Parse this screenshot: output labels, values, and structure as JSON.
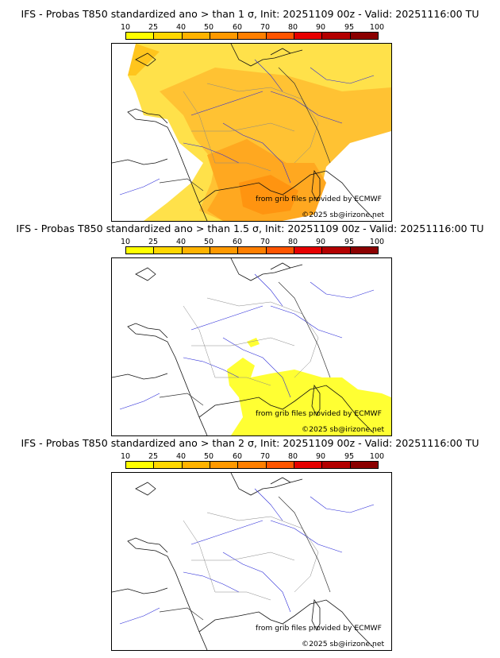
{
  "colorbar": {
    "ticks": [
      "10",
      "25",
      "40",
      "50",
      "60",
      "70",
      "80",
      "90",
      "95",
      "100"
    ],
    "colors": [
      "#ffff00",
      "#ffd700",
      "#ffb300",
      "#ff9900",
      "#ff7f00",
      "#ff5500",
      "#e60000",
      "#b30000",
      "#8b0000",
      "#5a0000"
    ]
  },
  "panels": [
    {
      "title": "IFS - Probas T850  standardized ano > than 1 σ, Init: 20251109 00z - Valid: 20251116:00 TU",
      "threshold": "1 σ",
      "credit_source": "from grib files provided by ECMWF",
      "credit_site": "©2025 sb@irizone.net"
    },
    {
      "title": "IFS - Probas T850  standardized ano > than 1.5 σ, Init: 20251109 00z - Valid: 20251116:00 TU",
      "threshold": "1.5 σ",
      "credit_source": "from grib files provided by ECMWF",
      "credit_site": "©2025 sb@irizone.net"
    },
    {
      "title": "IFS - Probas T850  standardized ano > than 2 σ, Init: 20251109 00z - Valid: 20251116:00 TU",
      "threshold": "2 σ",
      "credit_source": "from grib files provided by ECMWF",
      "credit_site": "©2025 sb@irizone.net"
    }
  ]
}
